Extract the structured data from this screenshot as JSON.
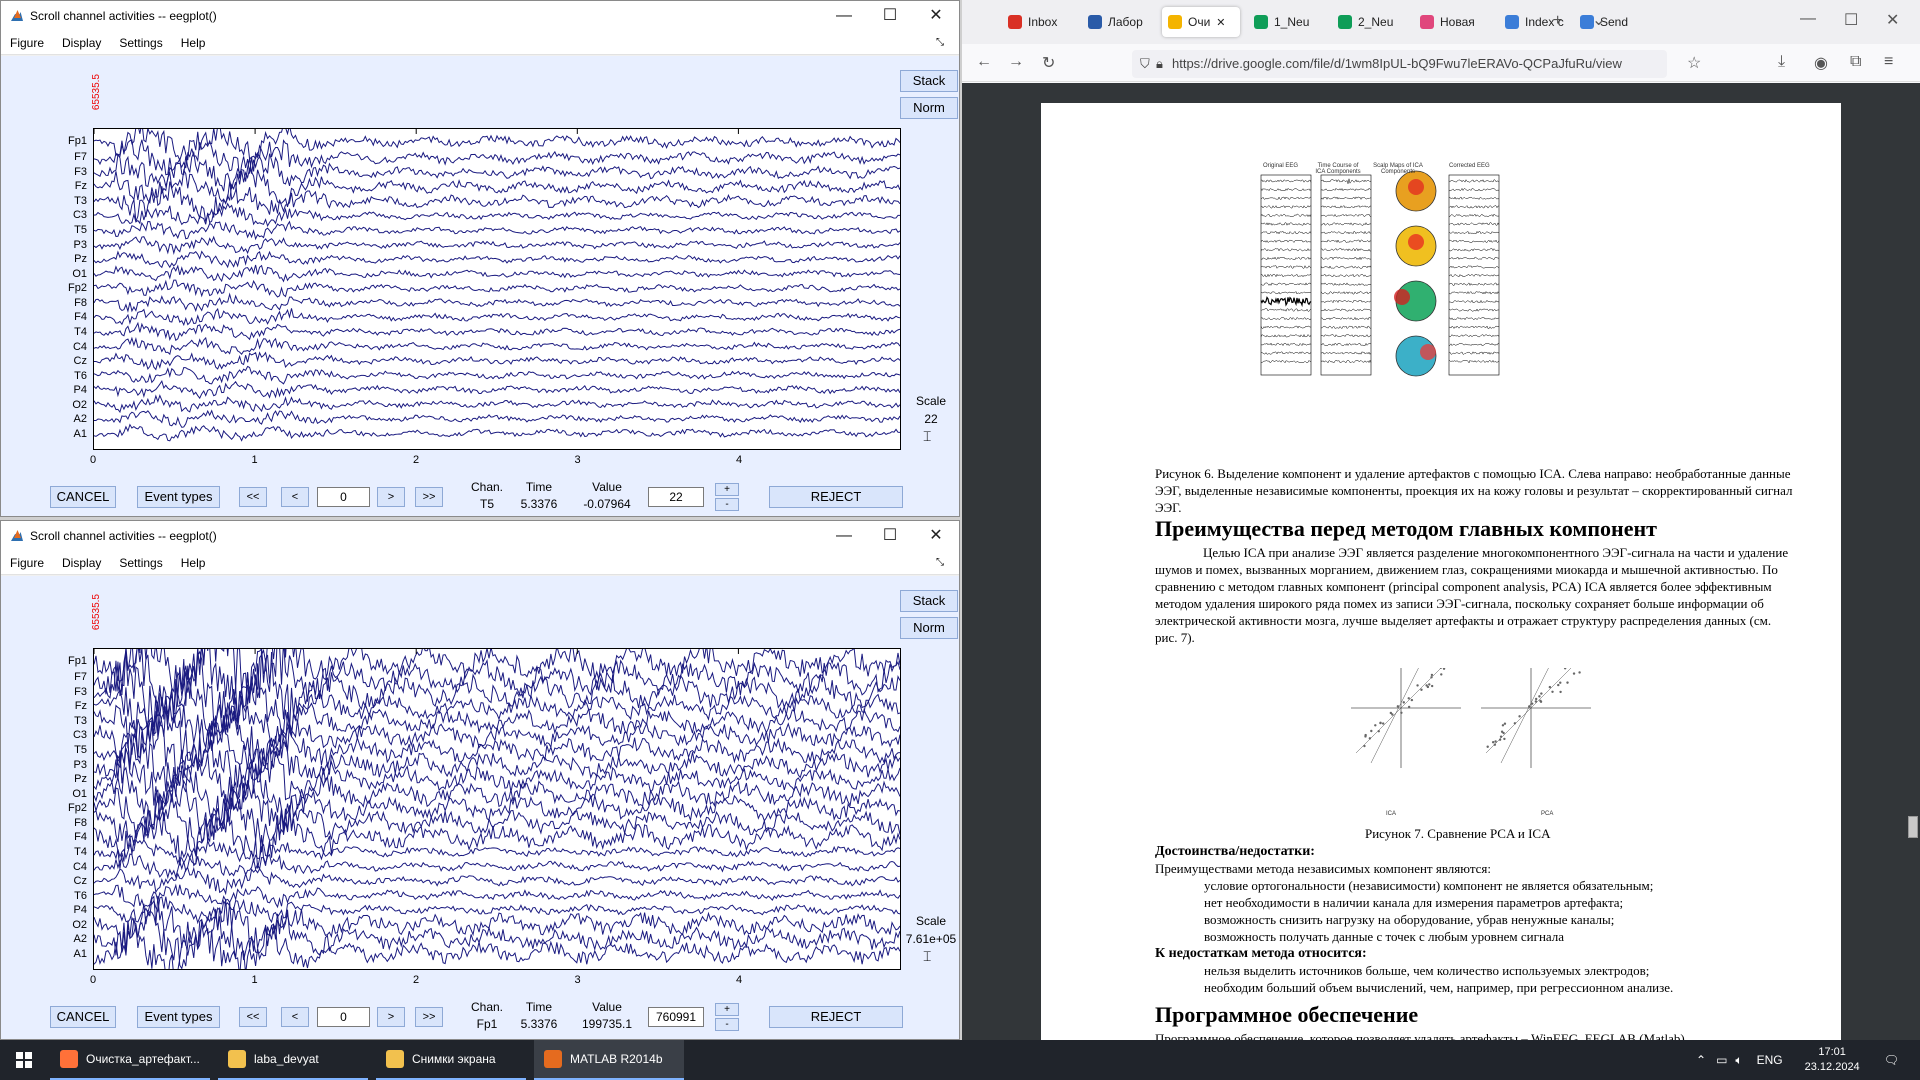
{
  "eeg_windows": [
    {
      "title": "Scroll channel activities -- eegplot()",
      "menu": [
        "Figure",
        "Display",
        "Settings",
        "Help"
      ],
      "ylabel": "65535.5",
      "channels": [
        "Fp1",
        "F7",
        "F3",
        "Fz",
        "T3",
        "C3",
        "T5",
        "P3",
        "Pz",
        "O1",
        "Fp2",
        "F8",
        "F4",
        "T4",
        "C4",
        "Cz",
        "T6",
        "P4",
        "O2",
        "A2",
        "A1"
      ],
      "xticks": [
        "0",
        "1",
        "2",
        "3",
        "4"
      ],
      "stack_label": "Stack",
      "norm_label": "Norm",
      "scale_label": "Scale",
      "scale_value": "22",
      "cancel_label": "CANCEL",
      "event_types_label": "Event types",
      "nav": [
        "<<",
        "<",
        "0",
        ">",
        ">>"
      ],
      "chan_header": "Chan.",
      "time_header": "Time",
      "value_header": "Value",
      "chan_value": "T5",
      "time_value": "5.3376",
      "value_value": "-0.07964",
      "spin_value": "22",
      "plus": "+",
      "minus": "-",
      "reject_label": "REJECT",
      "mode": "weak"
    },
    {
      "title": "Scroll channel activities -- eegplot()",
      "menu": [
        "Figure",
        "Display",
        "Settings",
        "Help"
      ],
      "ylabel": "65535.5",
      "channels": [
        "Fp1",
        "F7",
        "F3",
        "Fz",
        "T3",
        "C3",
        "T5",
        "P3",
        "Pz",
        "O1",
        "Fp2",
        "F8",
        "F4",
        "T4",
        "C4",
        "Cz",
        "T6",
        "P4",
        "O2",
        "A2",
        "A1"
      ],
      "xticks": [
        "0",
        "1",
        "2",
        "3",
        "4"
      ],
      "stack_label": "Stack",
      "norm_label": "Norm",
      "scale_label": "Scale",
      "scale_value": "7.61e+05",
      "cancel_label": "CANCEL",
      "event_types_label": "Event types",
      "nav": [
        "<<",
        "<",
        "0",
        ">",
        ">>"
      ],
      "chan_header": "Chan.",
      "time_header": "Time",
      "value_header": "Value",
      "chan_value": "Fp1",
      "time_value": "5.3376",
      "value_value": "199735.1",
      "spin_value": "760991",
      "plus": "+",
      "minus": "-",
      "reject_label": "REJECT",
      "mode": "strong"
    }
  ],
  "browser": {
    "tabs": [
      {
        "label": "Inbox",
        "color": "#d93025"
      },
      {
        "label": "Лабор",
        "color": "#2a5ba8"
      },
      {
        "label": "Очи",
        "color": "#f4b400",
        "active": true
      },
      {
        "label": "1_Neu",
        "color": "#0f9d58"
      },
      {
        "label": "2_Neu",
        "color": "#0f9d58"
      },
      {
        "label": "Новая",
        "color": "#e0467c"
      },
      {
        "label": "Index c",
        "color": "#3b7dd8"
      },
      {
        "label": "Send",
        "color": "#3b7dd8"
      }
    ],
    "url": "https://drive.google.com/file/d/1wm8IpUL-bQ9Fwu7leERAVo-QCPaJfuRu/view"
  },
  "doc": {
    "fig6_heads": [
      "Original EEG",
      "Time Course of ICA Components",
      "Scalp Maps of ICA Components",
      "Corrected EEG"
    ],
    "fig6_caption": "Рисунок 6. Выделение компонент и удаление артефактов с помощью ICA. Слева направо: необработанные данные ЭЭГ, выделенные независимые компоненты, проекция их на кожу головы и результат – скорректированный сигнал ЭЭГ.",
    "heading1": "Преимущества перед методом главных компонент",
    "para1": "Целью ICA при анализе ЭЭГ является разделение многокомпонентного ЭЭГ-сигнала на части и удаление шумов и помех, вызванных морганием, движением глаз, сокращениями миокарда и мышечной активностью. По сравнению с методом главных компонент (principal component analysis, PCA) ICA является более эффективным методом удаления широкого ряда помех из записи ЭЭГ-сигнала, поскольку сохраняет больше информации об электрической активности мозга, лучше выделяет артефакты и отражает структуру распределения данных (см. рис. 7).",
    "fig7_labels": [
      "ICA",
      "PCA"
    ],
    "fig7_caption": "Рисунок 7. Сравнение PCA и ICA",
    "adv_heading": "Достоинства/недостатки:",
    "adv_intro": "Преимуществами метода независимых компонент являются:",
    "adv_items": [
      "условие ортогональности (независимости) компонент не является обязательным;",
      "нет необходимости в наличии канала для измерения параметров артефакта;",
      "возможность снизить нагрузку на оборудование, убрав ненужные каналы;",
      "возможность получать данные с точек с любым уровнем сигнала"
    ],
    "dis_heading": "К недостаткам метода относится:",
    "dis_items": [
      "нельзя выделить источников больше, чем количество используемых электродов;",
      "необходим больший объем вычислений, чем, например, при регрессионном анализе."
    ],
    "heading2": "Программное обеспечение",
    "para2": "Программное обеспечение, которое позволяет удалять артефакты – WinEEG, EEGLAB (Matlab)"
  },
  "taskbar": {
    "items": [
      {
        "label": "Очистка_артефакт...",
        "color": "#ff7139"
      },
      {
        "label": "laba_devyat",
        "color": "#f2c14e"
      },
      {
        "label": "Снимки экрана",
        "color": "#f2c14e"
      },
      {
        "label": "MATLAB R2014b",
        "color": "#e56b1f",
        "active": true
      }
    ],
    "lang": "ENG",
    "time": "17:01",
    "date": "23.12.2024"
  }
}
